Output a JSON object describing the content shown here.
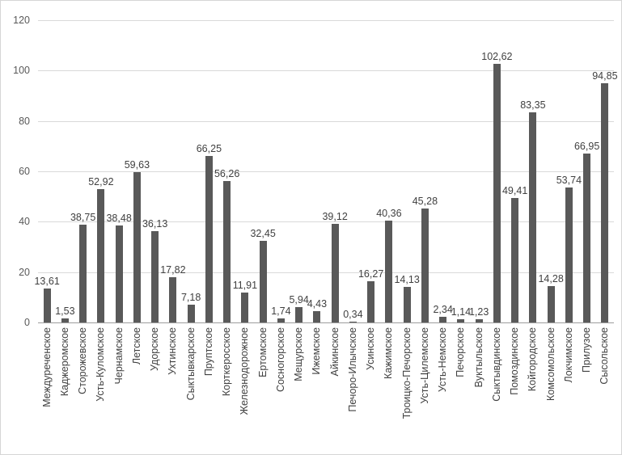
{
  "chart_data": {
    "type": "bar",
    "title": "",
    "xlabel": "",
    "ylabel": "",
    "ylim": [
      0,
      120
    ],
    "yticks": [
      0,
      20,
      40,
      60,
      80,
      100,
      120
    ],
    "grid": true,
    "legend": false,
    "bar_color": "#595959",
    "grid_color": "#d9d9d9",
    "axis_color": "#9d9d9d",
    "label_color": "#404040",
    "tick_color": "#595959",
    "categories": [
      "Междуреченское",
      "Каджеромское",
      "Сторожевское",
      "Усть-Куломское",
      "Чернамское",
      "Летское",
      "Удорское",
      "Ухтинское",
      "Сыктывкарское",
      "Пруптское",
      "Корткеросское",
      "Железнодорожное",
      "Ертомское",
      "Сосногорское",
      "Мещурское",
      "Ижемское",
      "Айкинское",
      "Печоро-Илычское",
      "Усинское",
      "Кажимское",
      "Троицко-Печорское",
      "Усть-Цилемское",
      "Усть-Немское",
      "Печорское",
      "Вуктыльское",
      "Сыктывдинское",
      "Помоздинское",
      "Койгородское",
      "Комсомольское",
      "Локчимское",
      "Прилузое",
      "Сысольское"
    ],
    "values": [
      13.61,
      1.53,
      38.75,
      52.92,
      38.48,
      59.63,
      36.13,
      17.82,
      7.18,
      66.25,
      56.26,
      11.91,
      32.45,
      1.74,
      5.94,
      4.43,
      39.12,
      0.34,
      16.27,
      40.36,
      14.13,
      45.28,
      2.34,
      1.14,
      1.23,
      102.62,
      49.41,
      83.35,
      14.28,
      53.74,
      66.95,
      94.85
    ],
    "value_labels": [
      "13,61",
      "1,53",
      "38,75",
      "52,92",
      "38,48",
      "59,63",
      "36,13",
      "17,82",
      "7,18",
      "66,25",
      "56,26",
      "11,91",
      "32,45",
      "1,74",
      "5,94",
      "4,43",
      "39,12",
      "0,34",
      "16,27",
      "40,36",
      "14,13",
      "45,28",
      "2,34",
      "1,14",
      "1,23",
      "102,62",
      "49,41",
      "83,35",
      "14,28",
      "53,74",
      "66,95",
      "94,85"
    ]
  }
}
